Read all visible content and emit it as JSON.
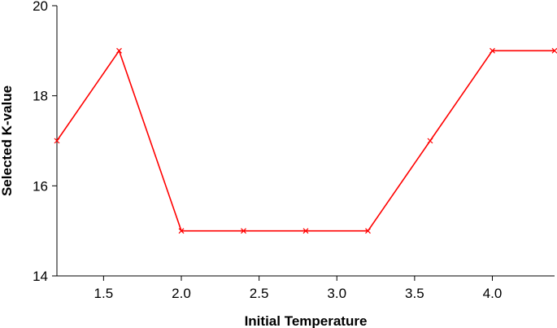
{
  "chart_data": {
    "type": "line",
    "title": "",
    "xlabel": "Initial Temperature",
    "ylabel": "Selected K-value",
    "xlim": [
      1.2,
      4.4
    ],
    "ylim": [
      14,
      20
    ],
    "xticks": [
      1.5,
      2.0,
      2.5,
      3.0,
      3.5,
      4.0
    ],
    "xtick_labels": [
      "1.5",
      "2.0",
      "2.5",
      "3.0",
      "3.5",
      "4.0"
    ],
    "yticks": [
      14,
      16,
      18,
      20
    ],
    "ytick_labels": [
      "14",
      "16",
      "18",
      "20"
    ],
    "grid": false,
    "legend": "none",
    "series": [
      {
        "color": "#ff0000",
        "marker": "x",
        "x": [
          1.2,
          1.6,
          2.0,
          2.4,
          2.8,
          3.2,
          3.6,
          4.0,
          4.4
        ],
        "y": [
          17,
          19,
          15,
          15,
          15,
          15,
          17,
          19,
          19
        ]
      }
    ]
  }
}
